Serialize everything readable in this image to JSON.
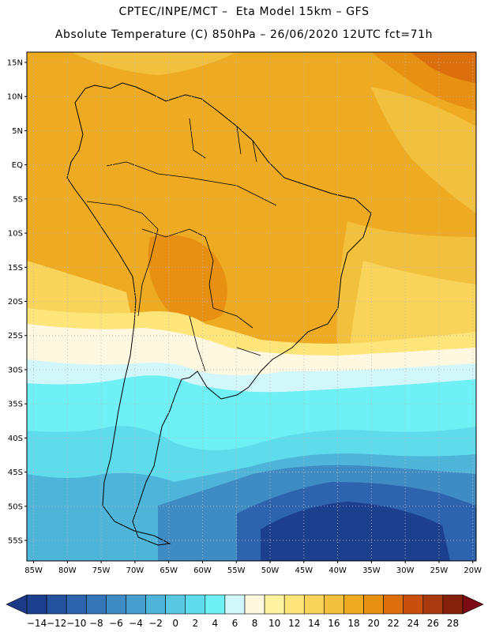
{
  "header": {
    "line1": "CPTEC/INPE/MCT –  Eta Model 15km – GFS",
    "line2": "Absolute Temperature (C) 850hPa – 26/06/2020 12UTC fct=71h"
  },
  "map": {
    "lat_labels": [
      "15N",
      "10N",
      "5N",
      "EQ",
      "5S",
      "10S",
      "15S",
      "20S",
      "25S",
      "30S",
      "35S",
      "40S",
      "45S",
      "50S",
      "55S"
    ],
    "lat_values": [
      15,
      10,
      5,
      0,
      -5,
      -10,
      -15,
      -20,
      -25,
      -30,
      -35,
      -40,
      -45,
      -50,
      -55
    ],
    "lon_labels": [
      "85W",
      "80W",
      "75W",
      "70W",
      "65W",
      "60W",
      "55W",
      "50W",
      "45W",
      "40W",
      "35W",
      "30W",
      "25W",
      "20W"
    ],
    "lon_values": [
      -85,
      -80,
      -75,
      -70,
      -65,
      -60,
      -55,
      -50,
      -45,
      -40,
      -35,
      -30,
      -25,
      -20
    ],
    "extent": {
      "lon_min": -86,
      "lon_max": -19.5,
      "lat_min": -58,
      "lat_max": 16.5
    },
    "gridlines": "dotted"
  },
  "colorbar": {
    "labels": [
      "-14",
      "-12",
      "-10",
      "-8",
      "-6",
      "-4",
      "-2",
      "0",
      "2",
      "4",
      "6",
      "8",
      "10",
      "12",
      "14",
      "16",
      "18",
      "20",
      "22",
      "24",
      "26",
      "28"
    ],
    "colors": [
      "#1c3f8e",
      "#24529f",
      "#2e64ad",
      "#3576b8",
      "#3f8bc4",
      "#469fcf",
      "#4fb4d9",
      "#58c8e3",
      "#5fdcec",
      "#6ff0f5",
      "#d2f7fb",
      "#fff8e0",
      "#fff3a0",
      "#fde57a",
      "#f8d45a",
      "#f2c03c",
      "#eeab22",
      "#e79012",
      "#dd6e0c",
      "#c8500c",
      "#a83a0e",
      "#85200c"
    ],
    "low_arrow_color": "#1c3a86",
    "high_arrow_color": "#7a0a14"
  },
  "field_colors": {
    "warm_2": "#eeab22",
    "warm_1": "#f2c03c",
    "hot": "#e79012",
    "hottest": "#dd6e0c",
    "mild": "#f8d45a",
    "cool_yellow": "#fde57a",
    "pale": "#fff8e0",
    "cold_1": "#6ff0f5",
    "cold_2": "#5fdcec",
    "cold_3": "#4fb4d9",
    "cold_4": "#3f8bc4",
    "cold_5": "#2e64ad",
    "cold_6": "#1c3f8e"
  }
}
